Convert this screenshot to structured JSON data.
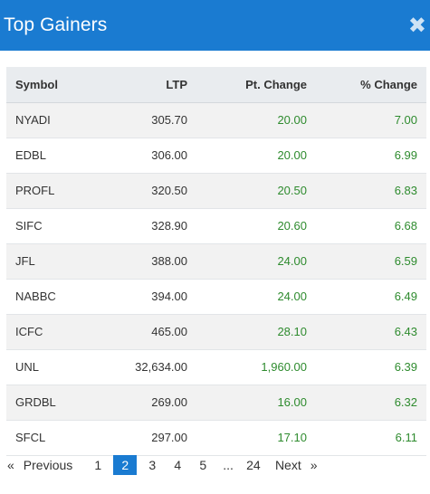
{
  "header": {
    "title": "Top Gainers",
    "close_glyph": "✖"
  },
  "table": {
    "columns": [
      "Symbol",
      "LTP",
      "Pt. Change",
      "% Change"
    ],
    "rows": [
      [
        "NYADI",
        "305.70",
        "20.00",
        "7.00"
      ],
      [
        "EDBL",
        "306.00",
        "20.00",
        "6.99"
      ],
      [
        "PROFL",
        "320.50",
        "20.50",
        "6.83"
      ],
      [
        "SIFC",
        "328.90",
        "20.60",
        "6.68"
      ],
      [
        "JFL",
        "388.00",
        "24.00",
        "6.59"
      ],
      [
        "NABBC",
        "394.00",
        "24.00",
        "6.49"
      ],
      [
        "ICFC",
        "465.00",
        "28.10",
        "6.43"
      ],
      [
        "UNL",
        "32,634.00",
        "1,960.00",
        "6.39"
      ],
      [
        "GRDBL",
        "269.00",
        "16.00",
        "6.32"
      ],
      [
        "SFCL",
        "297.00",
        "17.10",
        "6.11"
      ]
    ]
  },
  "pagination": {
    "first_arrow": "«",
    "previous": "Previous",
    "pages": [
      "1",
      "2",
      "3",
      "4",
      "5"
    ],
    "current": "2",
    "ellipsis": "...",
    "last_page": "24",
    "next": "Next",
    "last_arrow": "»"
  },
  "colors": {
    "header_bg": "#1a7bd1",
    "positive": "#2e8b2e",
    "active_page": "#1a7bd1"
  }
}
